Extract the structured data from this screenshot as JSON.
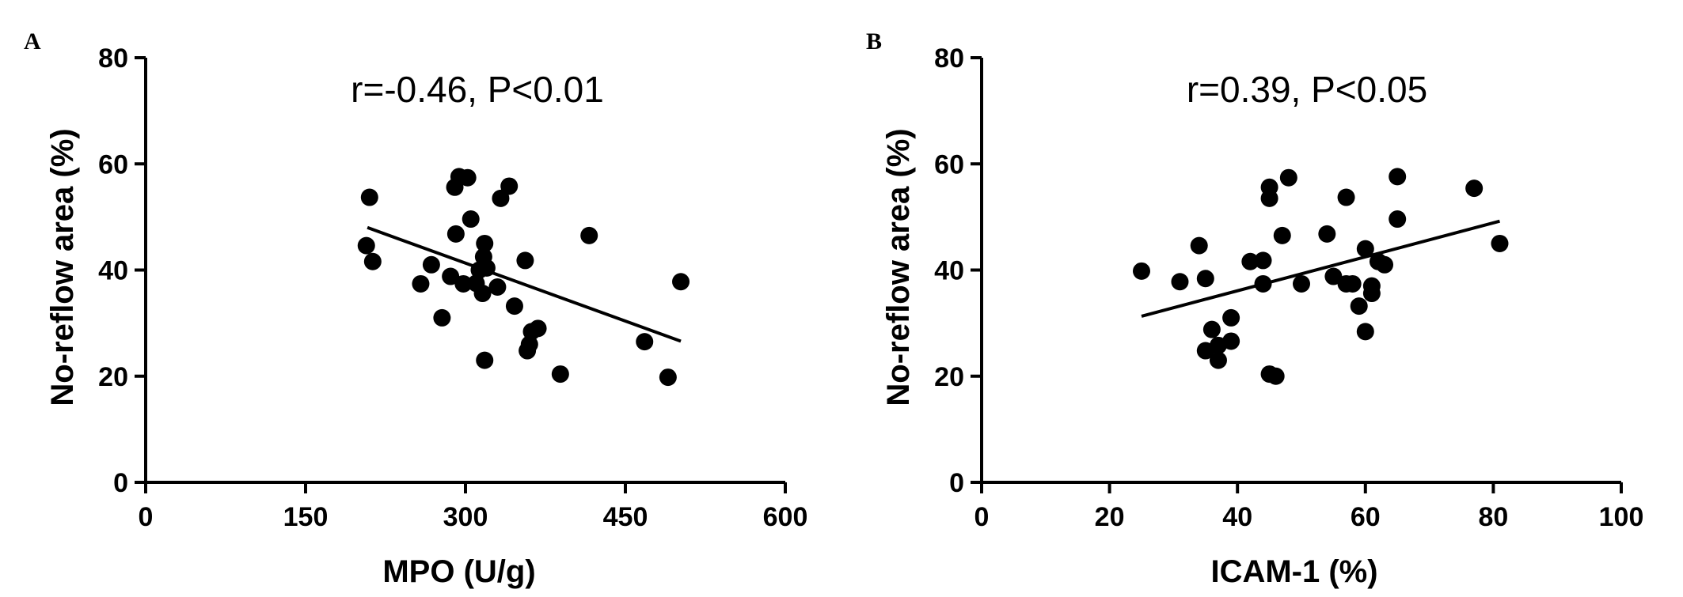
{
  "chart_data": [
    {
      "panel": "A",
      "type": "scatter",
      "annotation": "r=-0.46, P<0.01",
      "xlabel": "MPO (U/g)",
      "ylabel": "No-reflow area (%)",
      "xlim": [
        0,
        600
      ],
      "ylim": [
        0,
        80
      ],
      "xticks": [
        0,
        150,
        300,
        450,
        600
      ],
      "yticks": [
        0,
        20,
        40,
        60,
        80
      ],
      "points": [
        [
          210,
          53.7
        ],
        [
          207,
          44.6
        ],
        [
          213,
          41.6
        ],
        [
          258,
          37.4
        ],
        [
          268,
          41.0
        ],
        [
          278,
          31.0
        ],
        [
          286,
          38.8
        ],
        [
          290,
          55.6
        ],
        [
          291,
          46.8
        ],
        [
          294,
          57.6
        ],
        [
          298,
          37.4
        ],
        [
          302,
          57.4
        ],
        [
          305,
          49.6
        ],
        [
          310,
          37.5
        ],
        [
          313,
          40.0
        ],
        [
          316,
          35.6
        ],
        [
          317,
          42.5
        ],
        [
          318,
          45.0
        ],
        [
          320,
          40.4
        ],
        [
          318,
          23.0
        ],
        [
          330,
          36.8
        ],
        [
          333,
          53.5
        ],
        [
          341,
          55.8
        ],
        [
          346,
          33.2
        ],
        [
          356,
          41.8
        ],
        [
          358,
          24.8
        ],
        [
          360,
          26.0
        ],
        [
          362,
          28.4
        ],
        [
          368,
          29.0
        ],
        [
          389,
          20.4
        ],
        [
          416,
          46.5
        ],
        [
          468,
          26.5
        ],
        [
          490,
          19.8
        ],
        [
          502,
          37.8
        ]
      ],
      "fit": {
        "x": [
          208,
          502
        ],
        "y": [
          48.0,
          26.6
        ]
      }
    },
    {
      "panel": "B",
      "type": "scatter",
      "annotation": "r=0.39, P<0.05",
      "xlabel": "ICAM-1 (%)",
      "ylabel": "No-reflow area (%)",
      "xlim": [
        0,
        100
      ],
      "ylim": [
        0,
        80
      ],
      "xticks": [
        0,
        20,
        40,
        60,
        80,
        100
      ],
      "yticks": [
        0,
        20,
        40,
        60,
        80
      ],
      "points": [
        [
          25,
          39.8
        ],
        [
          31,
          37.8
        ],
        [
          34,
          44.6
        ],
        [
          35,
          38.4
        ],
        [
          35,
          24.8
        ],
        [
          36,
          28.8
        ],
        [
          37,
          23.0
        ],
        [
          37,
          25.8
        ],
        [
          39,
          31.0
        ],
        [
          39,
          26.6
        ],
        [
          42,
          41.6
        ],
        [
          44,
          41.8
        ],
        [
          44,
          37.4
        ],
        [
          45,
          55.6
        ],
        [
          45,
          53.5
        ],
        [
          45,
          20.4
        ],
        [
          46,
          20.0
        ],
        [
          47,
          46.5
        ],
        [
          48,
          57.4
        ],
        [
          50,
          37.4
        ],
        [
          54,
          46.8
        ],
        [
          55,
          38.8
        ],
        [
          57,
          37.4
        ],
        [
          57,
          53.7
        ],
        [
          58,
          37.4
        ],
        [
          59,
          33.2
        ],
        [
          60,
          28.4
        ],
        [
          60,
          44.0
        ],
        [
          61,
          37.0
        ],
        [
          61,
          35.6
        ],
        [
          62,
          41.6
        ],
        [
          63,
          41.0
        ],
        [
          65,
          57.6
        ],
        [
          65,
          49.6
        ],
        [
          77,
          55.4
        ],
        [
          81,
          45.0
        ]
      ],
      "fit": {
        "x": [
          25,
          81
        ],
        "y": [
          31.3,
          49.2
        ]
      }
    }
  ]
}
